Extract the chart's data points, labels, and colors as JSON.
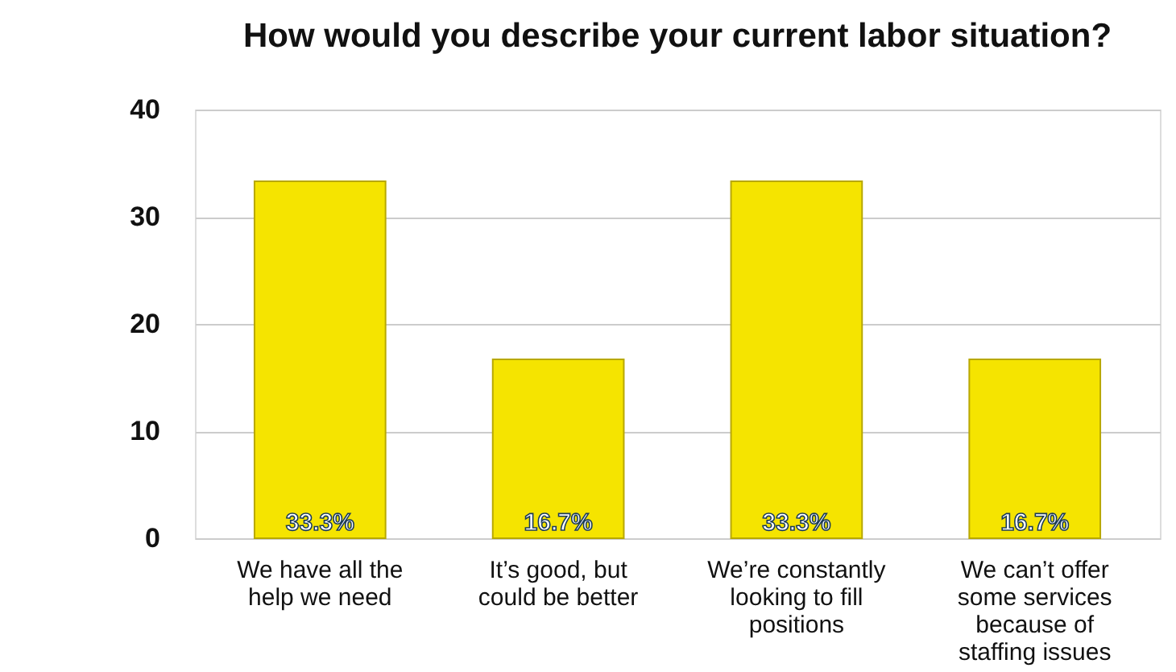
{
  "chart_data": {
    "type": "bar",
    "title": "How would you describe your current labor situation?",
    "categories": [
      "We have all the help we need",
      "It’s good, but could be better",
      "We’re constantly looking to fill positions",
      "We can’t offer some services because of staffing issues"
    ],
    "values": [
      33.3,
      16.7,
      33.3,
      16.7
    ],
    "value_labels": [
      "33.3%",
      "16.7%",
      "33.3%",
      "16.7%"
    ],
    "color": "#f5e400",
    "ylim": [
      0,
      40
    ],
    "yticks": [
      0,
      10,
      20,
      30,
      40
    ],
    "grid": "y"
  }
}
